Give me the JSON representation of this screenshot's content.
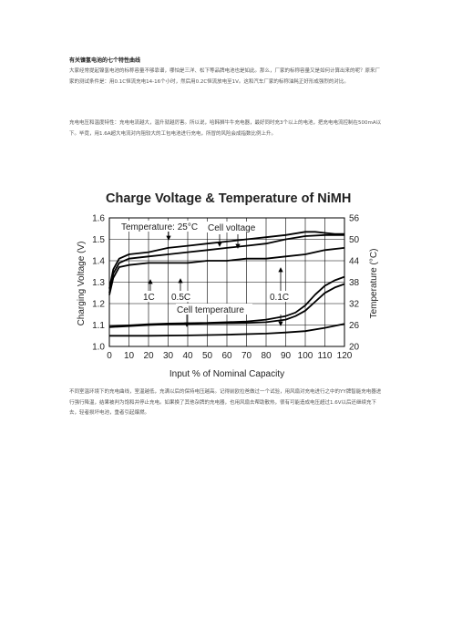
{
  "article": {
    "title": "有关镍氢电池的七个特性曲线",
    "paragraphs": [
      "大家经常提起镍氢电池的标称容量不够靠谱，哪怕是三洋、松下等品牌电池也是如此。那么，厂家的标称容量又是如何计算出来的呢？原来厂家的测试条件是：用0.1C恒流充电14-16个小时，然后用0.2C恒流放电至1V。这和汽车厂家的标称油耗正好形成强烈的对比。",
      "充电电压和温度特性：充电电流越大，温升就越厉害。所以说，哈韩狮牛牛充电器，最好同时充3个以上的电池，把充电电流控制在500mA以下。毕竟，用1.6A超大电流对内阻较大的工包电池进行充电，所冒的风险会成指数比例上升。",
      "不同室温环境下的充电曲线，室温越低，充满以后的保持电压越高。记得前欧拉爸做过一个试验，用风扇对充电进行之中的YY牌智能充电器进行强行降温，结果被判为饱和并停止充电。如果换了其他杂牌的充电器，也用风扇去帮助散热，很有可能造成电压超过1.6V以后还继续充下去，轻者损坏电池，重者引起爆燃。"
    ]
  },
  "chart_data": {
    "type": "line",
    "title": "Charge Voltage & Temperature of NiMH",
    "xlabel": "Input % of Nominal Capacity",
    "ylabel": "Charging Voltage (V)",
    "y2label": "Temperature (°C)",
    "x_ticks": [
      "0",
      "10",
      "20",
      "30",
      "40",
      "50",
      "60",
      "70",
      "80",
      "90",
      "100",
      "110",
      "120"
    ],
    "y_ticks": [
      "1.0",
      "1.1",
      "1.2",
      "1.3",
      "1.4",
      "1.5",
      "1.6"
    ],
    "y2_ticks": [
      "20",
      "26",
      "32",
      "38",
      "44",
      "50",
      "56"
    ],
    "xlim": [
      0,
      120
    ],
    "ylim": [
      1.0,
      1.6
    ],
    "y2lim": [
      20,
      56
    ],
    "grid": true,
    "annotations": {
      "temperature_label": "Temperature: 25°C",
      "cell_voltage_label": "Cell voltage",
      "cell_temperature_label": "Cell temperature",
      "rate_1c": "1C",
      "rate_05c": "0.5C",
      "rate_01c": "0.1C"
    },
    "series": [
      {
        "group": "voltage",
        "rate": "1C",
        "axis": "left",
        "x": [
          0,
          2,
          5,
          10,
          20,
          30,
          40,
          50,
          60,
          70,
          80,
          90,
          100,
          105,
          110,
          115,
          120
        ],
        "y": [
          1.27,
          1.36,
          1.41,
          1.43,
          1.44,
          1.46,
          1.47,
          1.48,
          1.49,
          1.5,
          1.51,
          1.52,
          1.535,
          1.535,
          1.53,
          1.525,
          1.525
        ]
      },
      {
        "group": "voltage",
        "rate": "0.5C",
        "axis": "left",
        "x": [
          0,
          2,
          5,
          10,
          20,
          30,
          40,
          50,
          60,
          70,
          80,
          90,
          100,
          110,
          120
        ],
        "y": [
          1.25,
          1.34,
          1.39,
          1.41,
          1.42,
          1.43,
          1.44,
          1.45,
          1.46,
          1.47,
          1.48,
          1.5,
          1.515,
          1.52,
          1.52
        ]
      },
      {
        "group": "voltage",
        "rate": "0.1C",
        "axis": "left",
        "x": [
          0,
          2,
          5,
          10,
          20,
          30,
          40,
          50,
          60,
          70,
          80,
          90,
          100,
          110,
          120
        ],
        "y": [
          1.24,
          1.32,
          1.37,
          1.38,
          1.39,
          1.39,
          1.39,
          1.4,
          1.4,
          1.41,
          1.41,
          1.42,
          1.43,
          1.45,
          1.46
        ]
      },
      {
        "group": "temperature",
        "rate": "1C",
        "axis": "right",
        "x": [
          0,
          10,
          20,
          30,
          40,
          50,
          60,
          70,
          80,
          90,
          95,
          100,
          105,
          110,
          115,
          120
        ],
        "y": [
          25.6,
          25.9,
          26.2,
          26.4,
          26.5,
          26.6,
          26.8,
          27.0,
          27.5,
          28.5,
          29.5,
          31.5,
          34.5,
          37.0,
          38.5,
          39.5
        ]
      },
      {
        "group": "temperature",
        "rate": "0.5C",
        "axis": "right",
        "x": [
          0,
          10,
          20,
          30,
          40,
          50,
          60,
          70,
          80,
          90,
          95,
          100,
          105,
          110,
          115,
          120
        ],
        "y": [
          25.4,
          25.7,
          26.0,
          26.2,
          26.3,
          26.4,
          26.5,
          26.6,
          26.8,
          27.5,
          28.5,
          30.0,
          32.5,
          35.0,
          36.5,
          37.5
        ]
      },
      {
        "group": "temperature",
        "rate": "0.1C",
        "axis": "right",
        "x": [
          0,
          20,
          40,
          60,
          80,
          90,
          100,
          110,
          120
        ],
        "y": [
          23.0,
          23.0,
          23.1,
          23.3,
          23.6,
          23.9,
          24.3,
          25.2,
          26.3
        ]
      }
    ]
  }
}
